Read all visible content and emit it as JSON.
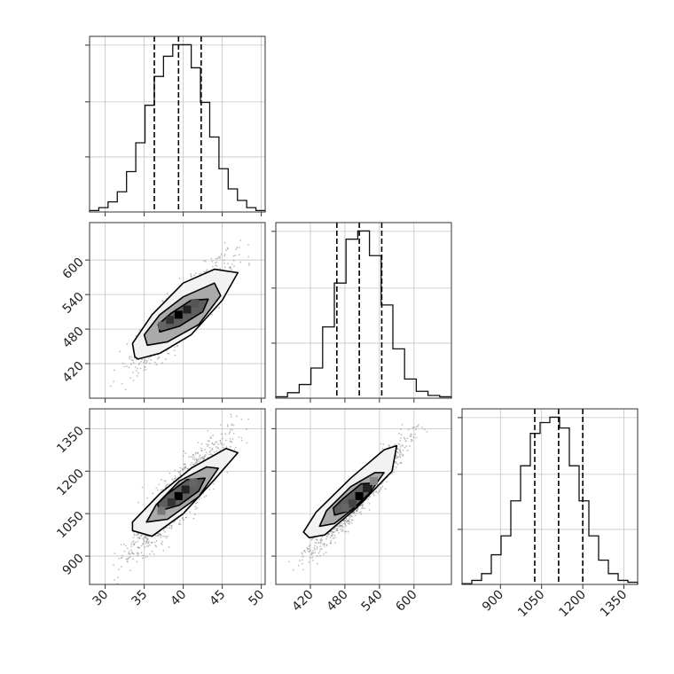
{
  "chart_data": {
    "type": "corner",
    "parameters": [
      {
        "xlim": [
          28,
          50.5
        ],
        "xticks": [
          "30",
          "35",
          "40",
          "45",
          "50"
        ],
        "quantiles": [
          36.3,
          39.4,
          42.3
        ],
        "hist": [
          0.5,
          1.5,
          3.5,
          7,
          14,
          24,
          37,
          47,
          54,
          58,
          58,
          50,
          38,
          26,
          15,
          8,
          4,
          1.5,
          0.5
        ]
      },
      {
        "xlim": [
          360,
          665
        ],
        "xticks": [
          "420",
          "480",
          "540",
          "600"
        ],
        "quantiles": [
          466,
          505,
          544
        ],
        "hist": [
          0.5,
          2,
          5,
          11,
          26,
          42,
          58,
          61,
          52,
          34,
          18,
          7,
          2.5,
          1,
          0.5
        ]
      },
      {
        "xlim": [
          760,
          1400
        ],
        "xticks": [
          "900",
          "1050",
          "1200",
          "1350"
        ],
        "quantiles": [
          1025,
          1112,
          1200
        ],
        "hist": [
          0.3,
          1.5,
          4,
          11,
          18,
          31,
          44,
          56,
          60,
          62,
          58,
          44,
          31,
          18,
          9,
          4,
          1.5,
          0.8
        ]
      }
    ],
    "pairs": [
      {
        "xi": 0,
        "yi": 1,
        "ylim": [
          360,
          665
        ],
        "yticks": [
          "420",
          "480",
          "540",
          "600"
        ],
        "contours": [
          [
            [
              34.2,
              428
            ],
            [
              37,
              438
            ],
            [
              41,
              470
            ],
            [
              45,
              530
            ],
            [
              47,
              578
            ],
            [
              44,
              584
            ],
            [
              40,
              560
            ],
            [
              36,
              505
            ],
            [
              33.5,
              455
            ],
            [
              33.8,
              432
            ]
          ],
          [
            [
              35.4,
              452
            ],
            [
              38,
              458
            ],
            [
              42,
              488
            ],
            [
              44.8,
              538
            ],
            [
              44,
              560
            ],
            [
              40,
              536
            ],
            [
              37,
              505
            ],
            [
              35,
              470
            ]
          ],
          [
            [
              37,
              475
            ],
            [
              39.5,
              485
            ],
            [
              42.5,
              510
            ],
            [
              43.2,
              532
            ],
            [
              41,
              530
            ],
            [
              38.5,
              508
            ],
            [
              36.8,
              488
            ]
          ]
        ],
        "cells": [
          [
            39.4,
            505,
            "#000000"
          ],
          [
            40.5,
            514,
            "#222222"
          ],
          [
            38.3,
            496,
            "#333333"
          ],
          [
            41.5,
            524,
            "#555555"
          ],
          [
            37.3,
            486,
            "#666666"
          ]
        ],
        "scatter_seed": 7,
        "scatter_n": 1400,
        "center": [
          39.4,
          505
        ],
        "sx": 2.9,
        "slope": 12.9,
        "sy": 20
      },
      {
        "xi": 0,
        "yi": 2,
        "ylim": [
          800,
          1420
        ],
        "yticks": [
          "900",
          "1050",
          "1200",
          "1350"
        ],
        "contours": [
          [
            [
              33.5,
              990
            ],
            [
              36,
              970
            ],
            [
              40,
              1050
            ],
            [
              44,
              1170
            ],
            [
              47,
              1265
            ],
            [
              45.5,
              1280
            ],
            [
              41,
              1210
            ],
            [
              37,
              1120
            ],
            [
              33.5,
              1020
            ]
          ],
          [
            [
              35.3,
              1020
            ],
            [
              38,
              1030
            ],
            [
              42,
              1110
            ],
            [
              44.5,
              1210
            ],
            [
              43,
              1215
            ],
            [
              39.5,
              1165
            ],
            [
              36.5,
              1080
            ]
          ],
          [
            [
              37,
              1060
            ],
            [
              39.5,
              1080
            ],
            [
              42,
              1130
            ],
            [
              42.8,
              1175
            ],
            [
              40.5,
              1170
            ],
            [
              38,
              1120
            ],
            [
              36.7,
              1085
            ]
          ]
        ],
        "cells": [
          [
            39.4,
            1112,
            "#000000"
          ],
          [
            40.3,
            1135,
            "#222222"
          ],
          [
            38.5,
            1090,
            "#333333"
          ],
          [
            41.3,
            1160,
            "#666666"
          ],
          [
            37.2,
            1060,
            "#777777"
          ]
        ],
        "scatter_seed": 11,
        "scatter_n": 1400,
        "center": [
          39.4,
          1112
        ],
        "sx": 2.9,
        "slope": 29.7,
        "sy": 45
      },
      {
        "xi": 1,
        "yi": 2,
        "ylim": [
          800,
          1420
        ],
        "yticks": [
          "900",
          "1050",
          "1200",
          "1350"
        ],
        "contours": [
          [
            [
              418,
              965
            ],
            [
              445,
              975
            ],
            [
              500,
              1070
            ],
            [
              562,
              1200
            ],
            [
              570,
              1290
            ],
            [
              548,
              1275
            ],
            [
              490,
              1175
            ],
            [
              430,
              1055
            ],
            [
              408,
              985
            ]
          ],
          [
            [
              436,
              1005
            ],
            [
              462,
              1015
            ],
            [
              515,
              1100
            ],
            [
              548,
              1195
            ],
            [
              532,
              1195
            ],
            [
              490,
              1145
            ],
            [
              448,
              1060
            ]
          ],
          [
            [
              462,
              1045
            ],
            [
              490,
              1060
            ],
            [
              522,
              1120
            ],
            [
              528,
              1158
            ],
            [
              508,
              1155
            ],
            [
              478,
              1105
            ],
            [
              460,
              1070
            ]
          ]
        ],
        "cells": [
          [
            505,
            1112,
            "#000000"
          ],
          [
            518,
            1140,
            "#222222"
          ],
          [
            493,
            1086,
            "#444444"
          ],
          [
            480,
            1070,
            "#666666"
          ],
          [
            530,
            1165,
            "#888888"
          ]
        ],
        "scatter_seed": 23,
        "scatter_n": 1400,
        "center": [
          505,
          1112
        ],
        "sx": 39,
        "slope": 2.25,
        "sy": 28
      }
    ]
  }
}
